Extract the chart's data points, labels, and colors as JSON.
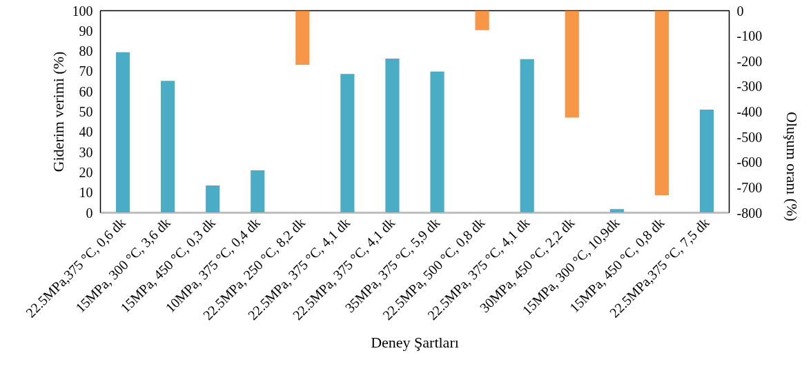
{
  "chart_data": {
    "type": "bar",
    "xlabel": "Deney Şartları",
    "ylabel": "Giderim verimi (%)",
    "y2label": "Oluşum oranı (%)",
    "categories": [
      "22.5MPa,375 °C, 0,6 dk",
      "15MPa, 300 °C, 3,6 dk",
      "15MPa, 450 °C, 0,3 dk",
      "10MPa, 375 °C, 0,4 dk",
      "22.5MPa, 250 °C, 8,2 dk",
      "22.5MPa, 375 °C, 4,1 dk",
      "22.5MPa, 375 °C, 4,1 dk",
      "35MPa, 375 °C, 5,9 dk",
      "22.5MPa, 500 °C, 0,8 dk",
      "22.5MPa, 375 °C, 4,1 dk",
      "30MPa, 450 °C, 2,2 dk",
      "15MPa, 300 °C, 10,9dk",
      "15MPa, 450 °C, 0,8 dk",
      "22.5MPa,375 °C, 7,5 dk"
    ],
    "series": [
      {
        "color": "#4bacc6",
        "values": [
          79.4,
          65.3,
          13.5,
          21.0,
          null,
          68.7,
          76.3,
          69.9,
          null,
          76.0,
          null,
          1.8,
          null,
          51.0
        ]
      },
      {
        "color": "#f79646",
        "axis": "y2",
        "values": [
          null,
          null,
          null,
          null,
          -214,
          null,
          null,
          null,
          -77,
          null,
          -423,
          null,
          -731,
          null
        ]
      }
    ],
    "ylim": [
      0,
      100
    ],
    "yticks": [
      0,
      10,
      20,
      30,
      40,
      50,
      60,
      70,
      80,
      90,
      100
    ],
    "y2lim": [
      -800,
      0
    ],
    "y2ticks": [
      -800,
      -700,
      -600,
      -500,
      -400,
      -300,
      -200,
      -100,
      0
    ],
    "grid": false
  }
}
